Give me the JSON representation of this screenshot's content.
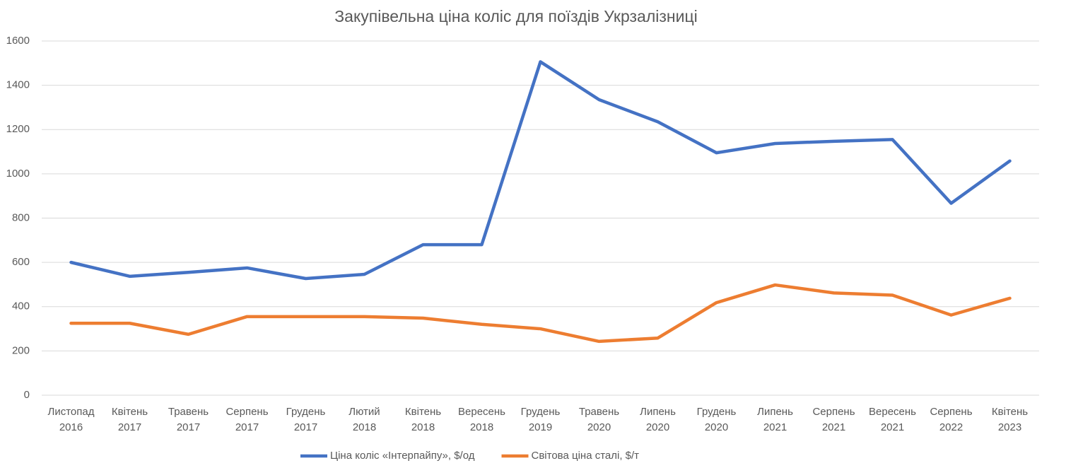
{
  "chart_data": {
    "type": "line",
    "title": "Закупівельна ціна коліс для поїздів Укрзалізниці",
    "categories": [
      [
        "Листопад",
        "2016"
      ],
      [
        "Квітень",
        "2017"
      ],
      [
        "Травень",
        "2017"
      ],
      [
        "Серпень",
        "2017"
      ],
      [
        "Грудень",
        "2017"
      ],
      [
        "Лютий",
        "2018"
      ],
      [
        "Квітень",
        "2018"
      ],
      [
        "Вересень",
        "2018"
      ],
      [
        "Грудень",
        "2019"
      ],
      [
        "Травень",
        "2020"
      ],
      [
        "Липень",
        "2020"
      ],
      [
        "Грудень",
        "2020"
      ],
      [
        "Липень",
        "2021"
      ],
      [
        "Серпень",
        "2021"
      ],
      [
        "Вересень",
        "2021"
      ],
      [
        "Серпень",
        "2022"
      ],
      [
        "Квітень",
        "2023"
      ]
    ],
    "series": [
      {
        "name": "Ціна коліс «Інтерпайпу», $/од",
        "color": "#4472c4",
        "values": [
          600,
          537,
          555,
          575,
          527,
          546,
          680,
          680,
          1506,
          1335,
          1235,
          1095,
          1137,
          1147,
          1155,
          867,
          1058
        ]
      },
      {
        "name": "Світова ціна сталі, $/т",
        "color": "#ed7d31",
        "values": [
          325,
          325,
          275,
          355,
          355,
          355,
          348,
          320,
          300,
          243,
          258,
          418,
          498,
          462,
          452,
          362,
          438
        ]
      }
    ],
    "ylim": [
      0,
      1600
    ],
    "yticks": [
      0,
      200,
      400,
      600,
      800,
      1000,
      1200,
      1400,
      1600
    ],
    "grid": true,
    "legend": "bottom"
  }
}
